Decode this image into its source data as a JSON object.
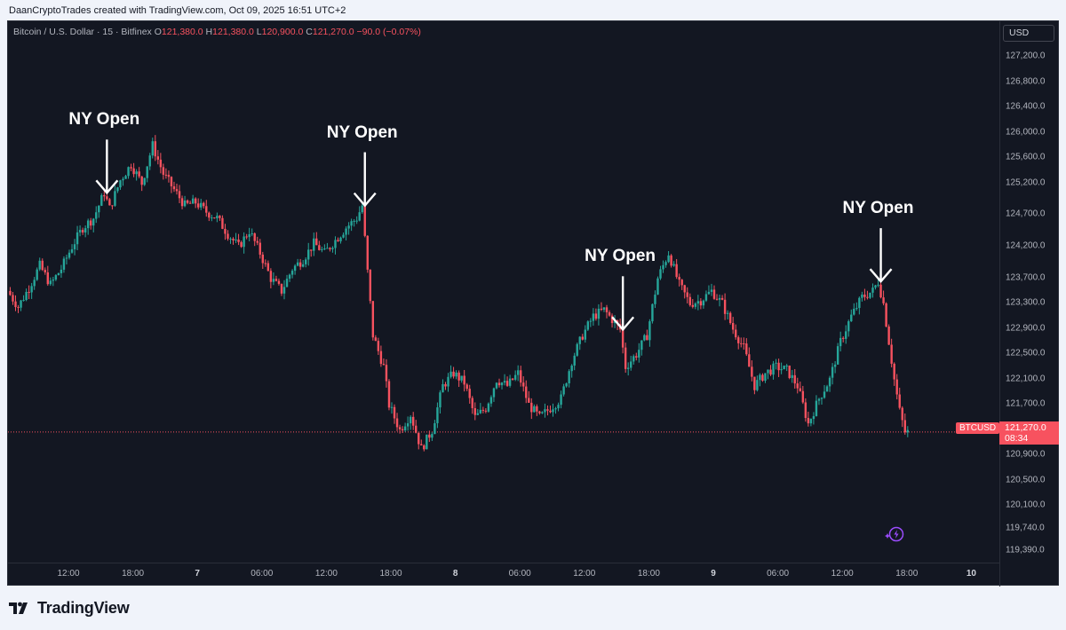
{
  "caption": "DaanCryptoTrades created with TradingView.com, Oct 09, 2025 16:51 UTC+2",
  "header": {
    "symbol": "Bitcoin / U.S. Dollar · 15 · Bitfinex",
    "o_label": "O",
    "o_value": "121,380.0",
    "h_label": "H",
    "h_value": "121,380.0",
    "l_label": "L",
    "l_value": "120,900.0",
    "c_label": "C",
    "c_value": "121,270.0",
    "change": "−90.0 (−0.07%)"
  },
  "currency": "USD",
  "last_price": {
    "symbol": "BTCUSD",
    "price": "121,270.0",
    "countdown": "08:34"
  },
  "brand": "TradingView",
  "colors": {
    "up": "#26a69a",
    "down": "#f7525f",
    "background": "#131722",
    "annotation": "#ffffff"
  },
  "icons": {
    "lightning": "lightning-icon",
    "logo": "tradingview-logo-icon"
  },
  "chart_data": {
    "type": "candlestick",
    "title": "Bitcoin / U.S. Dollar · 15 · Bitfinex",
    "ylim": [
      119200,
      127600
    ],
    "price_ticks": [
      "127,200.0",
      "126,800.0",
      "126,400.0",
      "126,000.0",
      "125,600.0",
      "125,200.0",
      "124,700.0",
      "124,200.0",
      "123,700.0",
      "123,300.0",
      "122,900.0",
      "122,500.0",
      "122,100.0",
      "121,700.0",
      "120,900.0",
      "120,500.0",
      "120,100.0",
      "119,740.0",
      "119,390.0"
    ],
    "price_tick_values": [
      127200,
      126800,
      126400,
      126000,
      125600,
      125200,
      124700,
      124200,
      123700,
      123300,
      122900,
      122500,
      122100,
      121700,
      120900,
      120500,
      120100,
      119740,
      119390
    ],
    "time_ticks": [
      {
        "label": "12:00",
        "hour": 12,
        "bold": false
      },
      {
        "label": "18:00",
        "hour": 18,
        "bold": false
      },
      {
        "label": "7",
        "hour": 24,
        "bold": true
      },
      {
        "label": "06:00",
        "hour": 30,
        "bold": false
      },
      {
        "label": "12:00",
        "hour": 36,
        "bold": false
      },
      {
        "label": "18:00",
        "hour": 42,
        "bold": false
      },
      {
        "label": "8",
        "hour": 48,
        "bold": true
      },
      {
        "label": "06:00",
        "hour": 54,
        "bold": false
      },
      {
        "label": "12:00",
        "hour": 60,
        "bold": false
      },
      {
        "label": "18:00",
        "hour": 66,
        "bold": false
      },
      {
        "label": "9",
        "hour": 72,
        "bold": true
      },
      {
        "label": "06:00",
        "hour": 78,
        "bold": false
      },
      {
        "label": "12:00",
        "hour": 84,
        "bold": false
      },
      {
        "label": "18:00",
        "hour": 90,
        "bold": false
      },
      {
        "label": "10",
        "hour": 96,
        "bold": true
      }
    ],
    "start_hour": 6.5,
    "end_hour": 98.5,
    "last_price_line": 121270,
    "annotations": [
      {
        "text": "NY Open",
        "hour": 15.5,
        "price": 125050,
        "label_price": 125920
      },
      {
        "text": "NY Open",
        "hour": 39.5,
        "price": 124850,
        "label_price": 125720
      },
      {
        "text": "NY Open",
        "hour": 63.5,
        "price": 122890,
        "label_price": 123760
      },
      {
        "text": "NY Open",
        "hour": 87.5,
        "price": 123650,
        "label_price": 124520
      }
    ],
    "path": [
      {
        "h": 6.5,
        "p": 123500
      },
      {
        "h": 7.5,
        "p": 123250
      },
      {
        "h": 8.5,
        "p": 123550
      },
      {
        "h": 9.5,
        "p": 123900
      },
      {
        "h": 10.5,
        "p": 123600
      },
      {
        "h": 11.5,
        "p": 123850
      },
      {
        "h": 12.5,
        "p": 124200
      },
      {
        "h": 13.5,
        "p": 124500
      },
      {
        "h": 14.5,
        "p": 124650
      },
      {
        "h": 15.5,
        "p": 125050
      },
      {
        "h": 16,
        "p": 124800
      },
      {
        "h": 17,
        "p": 125250
      },
      {
        "h": 18,
        "p": 125500
      },
      {
        "h": 19,
        "p": 125200
      },
      {
        "h": 20,
        "p": 125800
      },
      {
        "h": 21,
        "p": 125350
      },
      {
        "h": 22,
        "p": 125100
      },
      {
        "h": 23,
        "p": 124850
      },
      {
        "h": 24,
        "p": 124900
      },
      {
        "h": 25,
        "p": 124750
      },
      {
        "h": 26,
        "p": 124650
      },
      {
        "h": 27,
        "p": 124400
      },
      {
        "h": 28,
        "p": 124200
      },
      {
        "h": 29,
        "p": 124450
      },
      {
        "h": 30,
        "p": 124100
      },
      {
        "h": 31,
        "p": 123700
      },
      {
        "h": 32,
        "p": 123500
      },
      {
        "h": 33,
        "p": 123850
      },
      {
        "h": 34,
        "p": 124000
      },
      {
        "h": 35,
        "p": 124250
      },
      {
        "h": 36,
        "p": 124100
      },
      {
        "h": 37,
        "p": 124300
      },
      {
        "h": 38,
        "p": 124500
      },
      {
        "h": 39,
        "p": 124650
      },
      {
        "h": 39.5,
        "p": 124850
      },
      {
        "h": 40,
        "p": 123800
      },
      {
        "h": 40.5,
        "p": 122800
      },
      {
        "h": 41.5,
        "p": 122300
      },
      {
        "h": 42,
        "p": 121700
      },
      {
        "h": 43,
        "p": 121300
      },
      {
        "h": 44,
        "p": 121550
      },
      {
        "h": 45,
        "p": 121000
      },
      {
        "h": 46,
        "p": 121300
      },
      {
        "h": 47,
        "p": 122000
      },
      {
        "h": 48,
        "p": 122200
      },
      {
        "h": 49,
        "p": 122050
      },
      {
        "h": 50,
        "p": 121500
      },
      {
        "h": 51,
        "p": 121650
      },
      {
        "h": 52,
        "p": 122100
      },
      {
        "h": 53,
        "p": 122000
      },
      {
        "h": 54,
        "p": 122200
      },
      {
        "h": 55,
        "p": 121700
      },
      {
        "h": 56,
        "p": 121500
      },
      {
        "h": 57,
        "p": 121650
      },
      {
        "h": 58,
        "p": 121800
      },
      {
        "h": 59,
        "p": 122400
      },
      {
        "h": 60,
        "p": 122800
      },
      {
        "h": 61,
        "p": 123100
      },
      {
        "h": 62,
        "p": 123200
      },
      {
        "h": 63,
        "p": 123000
      },
      {
        "h": 63.5,
        "p": 122890
      },
      {
        "h": 64,
        "p": 122300
      },
      {
        "h": 65,
        "p": 122500
      },
      {
        "h": 66,
        "p": 122800
      },
      {
        "h": 67,
        "p": 123700
      },
      {
        "h": 68,
        "p": 124100
      },
      {
        "h": 69,
        "p": 123600
      },
      {
        "h": 70,
        "p": 123300
      },
      {
        "h": 71,
        "p": 123350
      },
      {
        "h": 72,
        "p": 123500
      },
      {
        "h": 73,
        "p": 123300
      },
      {
        "h": 74,
        "p": 122900
      },
      {
        "h": 75,
        "p": 122600
      },
      {
        "h": 76,
        "p": 122000
      },
      {
        "h": 77,
        "p": 122200
      },
      {
        "h": 78,
        "p": 122300
      },
      {
        "h": 79,
        "p": 122250
      },
      {
        "h": 80,
        "p": 122000
      },
      {
        "h": 81,
        "p": 121400
      },
      {
        "h": 82,
        "p": 121800
      },
      {
        "h": 83,
        "p": 122100
      },
      {
        "h": 84,
        "p": 122700
      },
      {
        "h": 85,
        "p": 123100
      },
      {
        "h": 86,
        "p": 123400
      },
      {
        "h": 87,
        "p": 123500
      },
      {
        "h": 87.5,
        "p": 123650
      },
      {
        "h": 88,
        "p": 123300
      },
      {
        "h": 88.5,
        "p": 122700
      },
      {
        "h": 89,
        "p": 122100
      },
      {
        "h": 89.5,
        "p": 121600
      },
      {
        "h": 90,
        "p": 121270
      }
    ]
  }
}
